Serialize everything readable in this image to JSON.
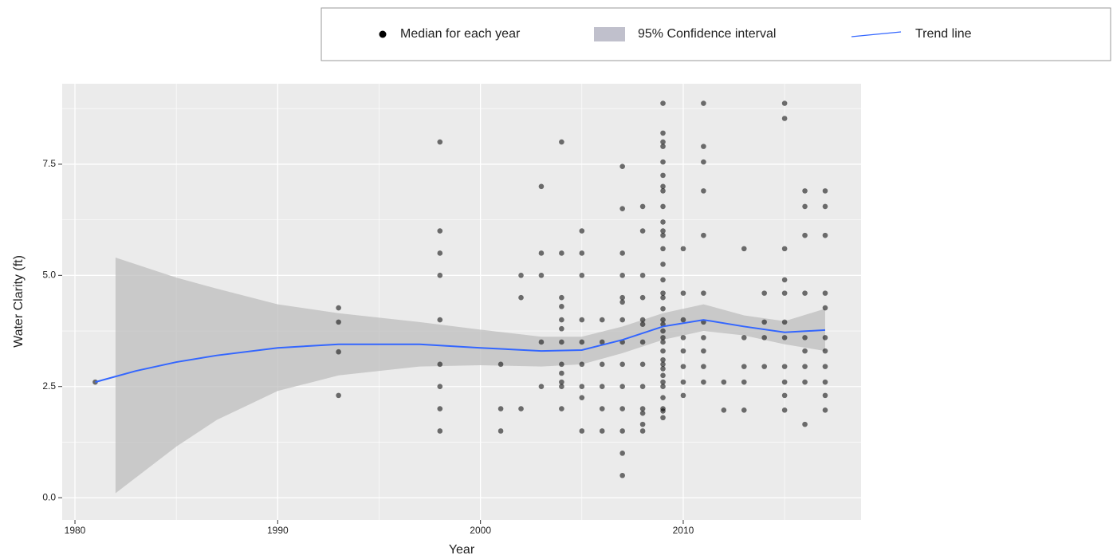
{
  "chart_data": {
    "type": "scatter",
    "xlabel": "Year",
    "ylabel": "Water Clarity (ft)",
    "xlim": [
      1979.37,
      2018.77
    ],
    "ylim": [
      -0.5,
      9.31
    ],
    "xticks": [
      1980,
      1990,
      2000,
      2010
    ],
    "yticks": [
      {
        "value": 0,
        "label": "0.0"
      },
      2.5,
      {
        "value": 5,
        "label": "5.0"
      },
      7.5
    ],
    "x_minor_grid": [
      1985,
      1995,
      2005,
      2015
    ],
    "y_minor_grid": [
      1.25,
      3.75,
      6.25,
      8.75
    ],
    "grid": true,
    "legend": "top",
    "series": [
      {
        "name": "Median for each year",
        "kind": "scatter",
        "color": "#000000",
        "x": [
          1981,
          1993,
          1993,
          1993,
          1993,
          1998,
          1998,
          1998,
          1998,
          1998,
          1998,
          1998,
          1998,
          1998,
          2001,
          2001,
          2001,
          2002,
          2002,
          2002,
          2003,
          2003,
          2003,
          2003,
          2003,
          2004,
          2004,
          2004,
          2004,
          2004,
          2004,
          2004,
          2004,
          2004,
          2004,
          2004,
          2004,
          2005,
          2005,
          2005,
          2005,
          2005,
          2005,
          2005,
          2005,
          2005,
          2006,
          2006,
          2006,
          2006,
          2006,
          2006,
          2007,
          2007,
          2007,
          2007,
          2007,
          2007,
          2007,
          2007,
          2007,
          2007,
          2007,
          2007,
          2007,
          2007,
          2008,
          2008,
          2008,
          2008,
          2008,
          2008,
          2008,
          2008,
          2008,
          2008,
          2008,
          2008,
          2008,
          2009,
          2009,
          2009,
          2009,
          2009,
          2009,
          2009,
          2009,
          2009,
          2009,
          2009,
          2009,
          2009,
          2009,
          2009,
          2009,
          2009,
          2009,
          2009,
          2009,
          2009,
          2009,
          2009,
          2009,
          2009,
          2009,
          2009,
          2009,
          2009,
          2009,
          2009,
          2009,
          2009,
          2009,
          2010,
          2010,
          2010,
          2010,
          2010,
          2010,
          2010,
          2010,
          2011,
          2011,
          2011,
          2011,
          2011,
          2011,
          2011,
          2011,
          2011,
          2011,
          2011,
          2012,
          2012,
          2013,
          2013,
          2013,
          2013,
          2013,
          2014,
          2014,
          2014,
          2014,
          2015,
          2015,
          2015,
          2015,
          2015,
          2015,
          2015,
          2015,
          2015,
          2015,
          2015,
          2016,
          2016,
          2016,
          2016,
          2016,
          2016,
          2016,
          2016,
          2016,
          2017,
          2017,
          2017,
          2017,
          2017,
          2017,
          2017,
          2017,
          2017,
          2017,
          2017
        ],
        "values": [
          2.6,
          4.27,
          3.95,
          3.28,
          2.3,
          8,
          6,
          5.5,
          5,
          4,
          3,
          2.5,
          2,
          1.5,
          3,
          2,
          1.5,
          5,
          4.5,
          2,
          7,
          5.5,
          5,
          3.5,
          2.5,
          8,
          5.5,
          4.5,
          4.3,
          4,
          3.8,
          3.5,
          3,
          2.8,
          2.6,
          2.5,
          2,
          6,
          5.5,
          5,
          4,
          3.5,
          3,
          2.5,
          2.25,
          1.5,
          4,
          3.5,
          3,
          2.5,
          2,
          1.5,
          7.45,
          6.5,
          5.5,
          5,
          4.5,
          4.4,
          4,
          3.5,
          3,
          2.5,
          2,
          1.5,
          1,
          0.5,
          6.55,
          6,
          5,
          4.5,
          4,
          3.9,
          3.5,
          3,
          2.5,
          2,
          1.9,
          1.65,
          1.5,
          8.87,
          8.2,
          8,
          7.9,
          7.55,
          7.25,
          7,
          6.9,
          6.55,
          6.2,
          6,
          5.9,
          5.6,
          5.25,
          4.9,
          4.6,
          4.5,
          4.25,
          4,
          3.9,
          3.75,
          3.6,
          3.5,
          3.3,
          3.1,
          3,
          2.9,
          2.75,
          2.6,
          2.5,
          2.25,
          2,
          1.95,
          1.8,
          5.6,
          4.6,
          4,
          3.6,
          3.3,
          2.95,
          2.6,
          2.3,
          8.87,
          7.9,
          7.55,
          6.9,
          5.9,
          4.6,
          3.95,
          3.6,
          3.3,
          2.95,
          2.6,
          2.6,
          1.97,
          5.6,
          3.6,
          2.95,
          2.6,
          1.97,
          4.6,
          3.95,
          3.6,
          2.95,
          8.87,
          8.53,
          5.6,
          4.9,
          4.6,
          3.95,
          3.6,
          2.95,
          2.6,
          2.3,
          1.97,
          6.9,
          6.55,
          5.9,
          4.6,
          3.6,
          3.3,
          2.95,
          2.6,
          1.65,
          6.9,
          6.55,
          5.9,
          4.6,
          4.27,
          3.6,
          3.3,
          2.95,
          2.6,
          2.3,
          1.97
        ]
      },
      {
        "name": "95% Confidence interval",
        "kind": "band",
        "color": "#bebebe",
        "x": [
          1982,
          1985,
          1987,
          1990,
          1993,
          1997,
          2000,
          2003,
          2005,
          2007,
          2009,
          2011,
          2013,
          2015,
          2017
        ],
        "lower": [
          0.1,
          1.15,
          1.75,
          2.4,
          2.75,
          2.95,
          2.98,
          2.95,
          3.0,
          3.25,
          3.55,
          3.75,
          3.65,
          3.45,
          3.3
        ],
        "upper": [
          5.4,
          4.95,
          4.7,
          4.35,
          4.15,
          3.95,
          3.78,
          3.62,
          3.62,
          3.85,
          4.15,
          4.35,
          4.1,
          3.97,
          4.25
        ]
      },
      {
        "name": "Trend line",
        "kind": "line",
        "color": "#3366ff",
        "x": [
          1981,
          1983,
          1985,
          1987,
          1990,
          1993,
          1997,
          2000,
          2003,
          2005,
          2007,
          2009,
          2011,
          2013,
          2015,
          2017
        ],
        "values": [
          2.6,
          2.85,
          3.05,
          3.2,
          3.37,
          3.45,
          3.45,
          3.37,
          3.3,
          3.32,
          3.55,
          3.85,
          4.0,
          3.85,
          3.72,
          3.77
        ]
      }
    ]
  }
}
